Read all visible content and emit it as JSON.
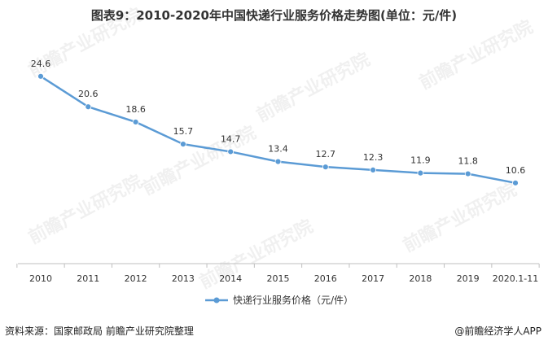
{
  "title": "图表9：2010-2020年中国快递行业服务价格走势图(单位：元/件)",
  "watermark": "前瞻产业研究院",
  "footer": {
    "source": "资料来源：国家邮政局 前瞻产业研究院整理",
    "credit": "@前瞻经济学人APP"
  },
  "chart_data": {
    "type": "line",
    "title": "图表9：2010-2020年中国快递行业服务价格走势图(单位：元/件)",
    "categories": [
      "2010",
      "2011",
      "2012",
      "2013",
      "2014",
      "2015",
      "2016",
      "2017",
      "2018",
      "2019",
      "2020.1-11"
    ],
    "series": [
      {
        "name": "快递行业服务价格（元/件）",
        "values": [
          24.6,
          20.6,
          18.6,
          15.7,
          14.7,
          13.4,
          12.7,
          12.3,
          11.9,
          11.8,
          10.6
        ]
      }
    ],
    "xlabel": "",
    "ylabel": "",
    "ylim": [
      0,
      28
    ],
    "grid": false,
    "legend": "bottom-center",
    "color": "#5B9BD5",
    "axis_color": "#bfbfbf"
  }
}
